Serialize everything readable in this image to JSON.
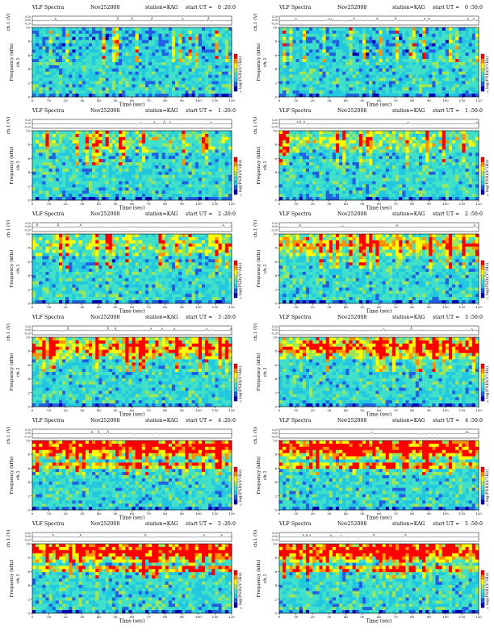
{
  "common": {
    "title": "VLF Spectra",
    "date": "Nov252008",
    "station": "station=KAG",
    "start_prefix": "start  UT =",
    "ch_ylabel": "ch.1 (V)",
    "ch_ticks": [
      "0.20",
      "0.00",
      "-0.20"
    ],
    "freq_ylabel": "Frequency  (kHz)",
    "freq_ylabel_prefix": "ch.1",
    "freq_ticks": [
      "0",
      "2",
      "4",
      "6",
      "8",
      "10"
    ],
    "time_ticks": [
      "0",
      "10",
      "20",
      "30",
      "40",
      "50",
      "60",
      "70",
      "80",
      "90",
      "100",
      "110",
      "120"
    ],
    "xlabel": "Time  (sec)",
    "colorbar_label": "log(PSD)(V²/Hz)",
    "colorbar_ticks": [
      "",
      "-1"
    ],
    "colors": {
      "low": "#0000b4",
      "mid": "#22c8e0",
      "bg": "#40e0c8",
      "high": "#ffff00",
      "peak": "#ff0000"
    }
  },
  "chart_data": [
    {
      "type": "heatmap",
      "start_ut": "0 :20:0",
      "xlim": [
        0,
        120
      ],
      "ylim": [
        0,
        10
      ],
      "xlabel": "Time  (sec)",
      "ylabel": "Frequency  (kHz)",
      "band_khz": 0,
      "band_strength": 0,
      "lower_band": false
    },
    {
      "type": "heatmap",
      "start_ut": "0 :50:0",
      "xlim": [
        0,
        120
      ],
      "ylim": [
        0,
        10
      ],
      "xlabel": "Time  (sec)",
      "ylabel": "Frequency  (kHz)",
      "band_khz": 0,
      "band_strength": 0,
      "lower_band": false
    },
    {
      "type": "heatmap",
      "start_ut": "1 :20:0",
      "xlim": [
        0,
        120
      ],
      "ylim": [
        0,
        10
      ],
      "xlabel": "Time  (sec)",
      "ylabel": "Frequency  (kHz)",
      "band_khz": 8.5,
      "band_strength": 0.3,
      "lower_band": false
    },
    {
      "type": "heatmap",
      "start_ut": "1 :50:0",
      "xlim": [
        0,
        120
      ],
      "ylim": [
        0,
        10
      ],
      "xlabel": "Time  (sec)",
      "ylabel": "Frequency  (kHz)",
      "band_khz": 8.5,
      "band_strength": 0.4,
      "lower_band": false
    },
    {
      "type": "heatmap",
      "start_ut": "2 :20:0",
      "xlim": [
        0,
        120
      ],
      "ylim": [
        0,
        10
      ],
      "xlabel": "Time  (sec)",
      "ylabel": "Frequency  (kHz)",
      "band_khz": 8.5,
      "band_strength": 0.4,
      "lower_band": false
    },
    {
      "type": "heatmap",
      "start_ut": "2 :50:0",
      "xlim": [
        0,
        120
      ],
      "ylim": [
        0,
        10
      ],
      "xlabel": "Time  (sec)",
      "ylabel": "Frequency  (kHz)",
      "band_khz": 8.5,
      "band_strength": 0.5,
      "lower_band": false
    },
    {
      "type": "heatmap",
      "start_ut": "3 :20:0",
      "xlim": [
        0,
        120
      ],
      "ylim": [
        0,
        10
      ],
      "xlabel": "Time  (sec)",
      "ylabel": "Frequency  (kHz)",
      "band_khz": 8.5,
      "band_strength": 0.7,
      "lower_band": false
    },
    {
      "type": "heatmap",
      "start_ut": "3 :50:0",
      "xlim": [
        0,
        120
      ],
      "ylim": [
        0,
        10
      ],
      "xlabel": "Time  (sec)",
      "ylabel": "Frequency  (kHz)",
      "band_khz": 8.5,
      "band_strength": 0.8,
      "lower_band": false
    },
    {
      "type": "heatmap",
      "start_ut": "4 :20:0",
      "xlim": [
        0,
        120
      ],
      "ylim": [
        0,
        10
      ],
      "xlabel": "Time  (sec)",
      "ylabel": "Frequency  (kHz)",
      "band_khz": 9.0,
      "band_strength": 1.0,
      "lower_band": true
    },
    {
      "type": "heatmap",
      "start_ut": "4 :50:0",
      "xlim": [
        0,
        120
      ],
      "ylim": [
        0,
        10
      ],
      "xlabel": "Time  (sec)",
      "ylabel": "Frequency  (kHz)",
      "band_khz": 9.0,
      "band_strength": 1.0,
      "lower_band": true
    },
    {
      "type": "heatmap",
      "start_ut": "5 :20:0",
      "xlim": [
        0,
        120
      ],
      "ylim": [
        0,
        10
      ],
      "xlabel": "Time  (sec)",
      "ylabel": "Frequency  (kHz)",
      "band_khz": 9.0,
      "band_strength": 1.0,
      "lower_band": true
    },
    {
      "type": "heatmap",
      "start_ut": "5 :50:0",
      "xlim": [
        0,
        120
      ],
      "ylim": [
        0,
        10
      ],
      "xlabel": "Time  (sec)",
      "ylabel": "Frequency  (kHz)",
      "band_khz": 9.0,
      "band_strength": 1.0,
      "lower_band": true
    }
  ]
}
